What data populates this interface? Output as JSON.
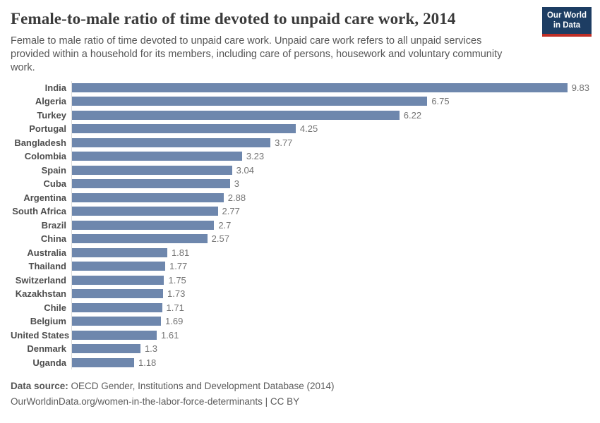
{
  "header": {
    "title": "Female-to-male ratio of time devoted to unpaid care work, 2014",
    "subtitle": "Female to male ratio of time devoted to unpaid care work. Unpaid care work refers to all unpaid services provided within a household for its members, including care of persons, housework and voluntary community work.",
    "logo": {
      "line1": "Our World",
      "line2": "in Data"
    }
  },
  "chart_data": {
    "type": "bar",
    "orientation": "horizontal",
    "title": "Female-to-male ratio of time devoted to unpaid care work, 2014",
    "categories": [
      "India",
      "Algeria",
      "Turkey",
      "Portugal",
      "Bangladesh",
      "Colombia",
      "Spain",
      "Cuba",
      "Argentina",
      "South Africa",
      "Brazil",
      "China",
      "Australia",
      "Thailand",
      "Switzerland",
      "Kazakhstan",
      "Chile",
      "Belgium",
      "United States",
      "Denmark",
      "Uganda"
    ],
    "values": [
      9.83,
      6.75,
      6.22,
      4.25,
      3.77,
      3.23,
      3.04,
      3,
      2.88,
      2.77,
      2.7,
      2.57,
      1.81,
      1.77,
      1.75,
      1.73,
      1.71,
      1.69,
      1.61,
      1.3,
      1.18
    ],
    "value_labels": [
      "9.83",
      "6.75",
      "6.22",
      "4.25",
      "3.77",
      "3.23",
      "3.04",
      "3",
      "2.88",
      "2.77",
      "2.7",
      "2.57",
      "1.81",
      "1.77",
      "1.75",
      "1.73",
      "1.71",
      "1.69",
      "1.61",
      "1.3",
      "1.18"
    ],
    "xlabel": "",
    "ylabel": "",
    "xlim": [
      0,
      9.83
    ],
    "grid": false,
    "legend": false,
    "bar_color": "#6e87ad",
    "axis_line_color": "#dcdcdc"
  },
  "footer": {
    "datasource_label": "Data source:",
    "datasource_text": " OECD Gender, Institutions and Development Database (2014)",
    "link_text": "OurWorldinData.org/women-in-the-labor-force-determinants",
    "license_suffix": " | CC BY"
  }
}
